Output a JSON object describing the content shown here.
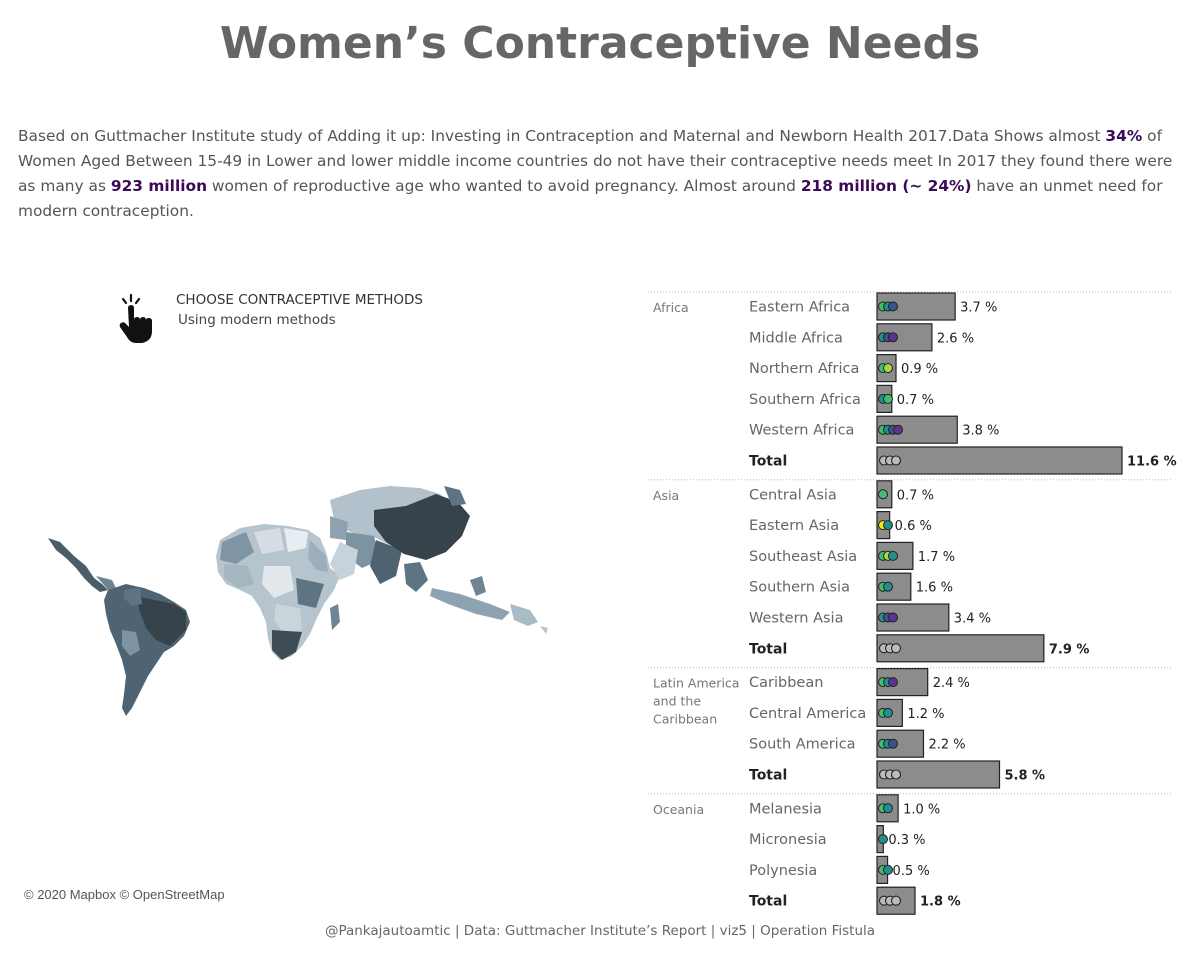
{
  "title": "Women’s Contraceptive Needs",
  "intro": {
    "p1": "Based on Guttmacher Institute study of  Adding it up: Investing in Contraception and Maternal and Newborn Health 2017.Data Shows almost ",
    "b1": "34%",
    "p2": " of Women Aged Between 15-49 in Lower and lower middle income countries do not have their contraceptive needs meet  In 2017 they found there were  as many as ",
    "b2": "923 million",
    "p3": " women of reproductive age who wanted to avoid pregnancy. Almost around ",
    "b3": "218 million (~ 24%)",
    "p4": " have an unmet need for modern contraception."
  },
  "chooser": {
    "heading": "CHOOSE CONTRACEPTIVE METHODS",
    "selected": "Using modern methods",
    "icon": "pointing-hand-icon"
  },
  "map_credit": "© 2020 Mapbox © OpenStreetMap",
  "footer": "@Pankajautoamtic | Data: Guttmacher Institute’s Report | viz5 | Operation Fistula",
  "colors": {
    "bar": "#8c8c8c",
    "bar_stroke": "#222222",
    "map_dark": "#36434a",
    "map_light": "#d8e0e6",
    "highlight": "#3b0a57",
    "dots": [
      "#3fbf6f",
      "#21908c",
      "#3b528b",
      "#5c3490",
      "#f2e41e",
      "#a7d64a"
    ]
  },
  "chart_data": {
    "type": "bar",
    "value_unit": "%",
    "xlim": [
      0,
      11.6
    ],
    "groups": [
      {
        "region": "Africa",
        "rows": [
          {
            "label": "Eastern Africa",
            "value": 3.7,
            "display": "3.7 %",
            "dots": [
              0,
              1,
              2
            ]
          },
          {
            "label": "Middle Africa",
            "value": 2.6,
            "display": "2.6 %",
            "dots": [
              1,
              2,
              3
            ]
          },
          {
            "label": "Northern Africa",
            "value": 0.9,
            "display": "0.9 %",
            "dots": [
              0,
              5
            ]
          },
          {
            "label": "Southern Africa",
            "value": 0.7,
            "display": "0.7 %",
            "dots": [
              1,
              0
            ]
          },
          {
            "label": "Western Africa",
            "value": 3.8,
            "display": "3.8 %",
            "dots": [
              0,
              1,
              2,
              3
            ]
          },
          {
            "label": "Total",
            "value": 11.6,
            "display": "11.6 %",
            "total": true
          }
        ]
      },
      {
        "region": "Asia",
        "rows": [
          {
            "label": "Central Asia",
            "value": 0.7,
            "display": "0.7 %",
            "dots": [
              0
            ]
          },
          {
            "label": "Eastern Asia",
            "value": 0.6,
            "display": "0.6 %",
            "dots": [
              4,
              1
            ]
          },
          {
            "label": "Southeast Asia",
            "value": 1.7,
            "display": "1.7 %",
            "dots": [
              0,
              5,
              1
            ]
          },
          {
            "label": "Southern Asia",
            "value": 1.6,
            "display": "1.6 %",
            "dots": [
              0,
              1
            ]
          },
          {
            "label": "Western Asia",
            "value": 3.4,
            "display": "3.4 %",
            "dots": [
              1,
              2,
              3
            ]
          },
          {
            "label": "Total",
            "value": 7.9,
            "display": "7.9 %",
            "total": true
          }
        ]
      },
      {
        "region": "Latin America and the Caribbean",
        "region_lines": [
          "Latin America",
          "and the",
          "Caribbean"
        ],
        "rows": [
          {
            "label": "Caribbean",
            "value": 2.4,
            "display": "2.4 %",
            "dots": [
              0,
              1,
              3
            ]
          },
          {
            "label": "Central America",
            "value": 1.2,
            "display": "1.2 %",
            "dots": [
              0,
              1
            ]
          },
          {
            "label": "South America",
            "value": 2.2,
            "display": "2.2 %",
            "dots": [
              0,
              1,
              2
            ]
          },
          {
            "label": "Total",
            "value": 5.8,
            "display": "5.8 %",
            "total": true
          }
        ]
      },
      {
        "region": "Oceania",
        "rows": [
          {
            "label": "Melanesia",
            "value": 1.0,
            "display": "1.0 %",
            "dots": [
              0,
              1
            ]
          },
          {
            "label": "Micronesia",
            "value": 0.3,
            "display": "0.3 %",
            "dots": [
              1
            ]
          },
          {
            "label": "Polynesia",
            "value": 0.5,
            "display": "0.5 %",
            "dots": [
              0,
              1
            ]
          },
          {
            "label": "Total",
            "value": 1.8,
            "display": "1.8 %",
            "total": true
          }
        ]
      }
    ]
  }
}
